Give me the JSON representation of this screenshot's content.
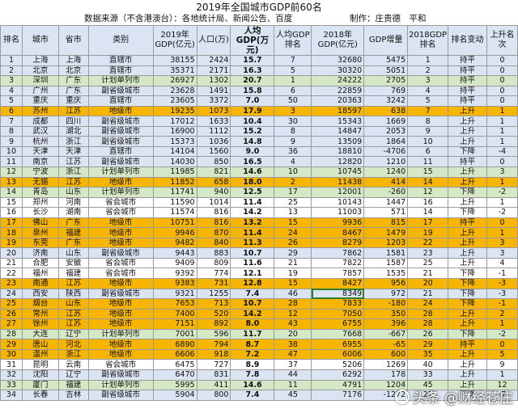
{
  "title": "2019年全国城市GDP前60名",
  "source": "数据来源（不含港澳台）：各地统计局、新闻公告、百度",
  "author": "制作：庄贵德　平和",
  "headers": [
    "排名",
    "城市",
    "省市",
    "类别",
    "2019年GDP(亿元)",
    "人口(万)",
    "人均GDP(万元)",
    "人均GDP排名",
    "2018年GDP(亿元)",
    "GDP增量",
    "2018GDP排名",
    "排名变动",
    "上升名次"
  ],
  "rows": [
    {
      "c": [
        "1",
        "上海",
        "上海",
        "直辖市",
        "38155",
        "2424",
        "15.7",
        "7",
        "32680",
        "5475",
        "1",
        "持平",
        "0"
      ],
      "color": "b"
    },
    {
      "c": [
        "2",
        "北京",
        "北京",
        "直辖市",
        "35371",
        "2171",
        "16.3",
        "5",
        "30320",
        "5051",
        "2",
        "持平",
        "0"
      ],
      "color": "b"
    },
    {
      "c": [
        "3",
        "深圳",
        "广东",
        "计划单列市",
        "26927",
        "1302",
        "20.7",
        "1",
        "24222",
        "2705",
        "3",
        "持平",
        "0"
      ],
      "color": "g"
    },
    {
      "c": [
        "4",
        "广州",
        "广东",
        "副省级城市",
        "23628",
        "1491",
        "15.8",
        "6",
        "22859",
        "769",
        "4",
        "持平",
        "0"
      ],
      "color": "b"
    },
    {
      "c": [
        "5",
        "重庆",
        "重庆",
        "直辖市",
        "23605",
        "3372",
        "7.0",
        "50",
        "20363",
        "3242",
        "5",
        "持平",
        "0"
      ],
      "color": "b"
    },
    {
      "c": [
        "6",
        "苏州",
        "江苏",
        "地级市",
        "19235",
        "1073",
        "17.9",
        "3",
        "18597",
        "638",
        "7",
        "上升",
        "1"
      ],
      "color": "o"
    },
    {
      "c": [
        "7",
        "成都",
        "四川",
        "副省级城市",
        "17012",
        "1633",
        "10.4",
        "30",
        "15343",
        "1669",
        "8",
        "上升",
        "1"
      ],
      "color": "b"
    },
    {
      "c": [
        "8",
        "武汉",
        "湖北",
        "副省级城市",
        "16900",
        "1112",
        "15.2",
        "8",
        "14847",
        "2053",
        "9",
        "上升",
        "1"
      ],
      "color": "b"
    },
    {
      "c": [
        "9",
        "杭州",
        "浙江",
        "副省级城市",
        "15373",
        "1036",
        "14.8",
        "9",
        "13509",
        "1864",
        "10",
        "上升",
        "1"
      ],
      "color": "b"
    },
    {
      "c": [
        "10",
        "天津",
        "天津",
        "直辖市",
        "14104",
        "1560",
        "9.0",
        "36",
        "18810",
        "-4706",
        "6",
        "下降",
        "-4"
      ],
      "color": "b"
    },
    {
      "c": [
        "11",
        "南京",
        "江苏",
        "副省级城市",
        "14030",
        "850",
        "16.5",
        "4",
        "12820",
        "1210",
        "11",
        "持平",
        "0"
      ],
      "color": "b"
    },
    {
      "c": [
        "12",
        "宁波",
        "浙江",
        "计划单列市",
        "11985",
        "821",
        "14.6",
        "10",
        "10745",
        "1240",
        "15",
        "上升",
        "3"
      ],
      "color": "g"
    },
    {
      "c": [
        "13",
        "无锡",
        "江苏",
        "地级市",
        "11852",
        "658",
        "18.0",
        "2",
        "11438",
        "414",
        "14",
        "上升",
        "1"
      ],
      "color": "o"
    },
    {
      "c": [
        "14",
        "青岛",
        "山东",
        "计划单列市",
        "11741",
        "940",
        "12.5",
        "17",
        "12001",
        "-260",
        "12",
        "下降",
        "-2"
      ],
      "color": "g"
    },
    {
      "c": [
        "15",
        "郑州",
        "河南",
        "省会城市",
        "11590",
        "1014",
        "11.4",
        "25",
        "10143",
        "1447",
        "16",
        "上升",
        "1"
      ],
      "color": "w"
    },
    {
      "c": [
        "16",
        "长沙",
        "湖南",
        "省会城市",
        "11574",
        "816",
        "14.2",
        "13",
        "11003",
        "571",
        "14",
        "下降",
        "-2"
      ],
      "color": "w"
    },
    {
      "c": [
        "17",
        "佛山",
        "广东",
        "地级市",
        "10751",
        "816",
        "13.2",
        "15",
        "9936",
        "815",
        "17",
        "持平",
        "0"
      ],
      "color": "o"
    },
    {
      "c": [
        "18",
        "泉州",
        "福建",
        "地级市",
        "9946",
        "870",
        "11.4",
        "24",
        "8467",
        "1479",
        "19",
        "上升",
        "1"
      ],
      "color": "o"
    },
    {
      "c": [
        "19",
        "东莞",
        "广东",
        "地级市",
        "9482",
        "840",
        "11.3",
        "26",
        "8279",
        "1203",
        "22",
        "上升",
        "3"
      ],
      "color": "o"
    },
    {
      "c": [
        "20",
        "济南",
        "山东",
        "副省级城市",
        "9443",
        "883",
        "10.7",
        "29",
        "7862",
        "1581",
        "23",
        "上升",
        "3"
      ],
      "color": "b"
    },
    {
      "c": [
        "21",
        "合肥",
        "安徽",
        "省会城市",
        "9409",
        "809",
        "11.6",
        "21",
        "7822",
        "1587",
        "25",
        "上升",
        "4"
      ],
      "color": "w"
    },
    {
      "c": [
        "22",
        "福州",
        "福建",
        "省会城市",
        "9392",
        "774",
        "12.1",
        "19",
        "7857",
        "1535",
        "21",
        "下降",
        "-1"
      ],
      "color": "w"
    },
    {
      "c": [
        "23",
        "南通",
        "江苏",
        "地级市",
        "9383",
        "731",
        "12.8",
        "15",
        "8427",
        "956",
        "20",
        "下降",
        "-3"
      ],
      "color": "o"
    },
    {
      "c": [
        "24",
        "西安",
        "陕西",
        "副省级城市",
        "9321",
        "1255",
        "7.4",
        "46",
        "8349",
        "972",
        "21",
        "下降",
        "-3"
      ],
      "color": "b"
    },
    {
      "c": [
        "25",
        "烟台",
        "山东",
        "地级市",
        "7653",
        "713",
        "10.7",
        "28",
        "7833",
        "-180",
        "24",
        "下降",
        "-1"
      ],
      "color": "o"
    },
    {
      "c": [
        "26",
        "常州",
        "江苏",
        "地级市",
        "7400",
        "520",
        "14.2",
        "12",
        "7050",
        "350",
        "28",
        "上升",
        "2"
      ],
      "color": "o"
    },
    {
      "c": [
        "27",
        "徐州",
        "江苏",
        "地级市",
        "7151",
        "892",
        "8.0",
        "43",
        "6755",
        "396",
        "28",
        "上升",
        "1"
      ],
      "color": "o"
    },
    {
      "c": [
        "28",
        "大连",
        "辽宁",
        "计划单列市",
        "7001",
        "596",
        "11.7",
        "20",
        "7668",
        "-667",
        "26",
        "下降",
        "-2"
      ],
      "color": "g"
    },
    {
      "c": [
        "29",
        "唐山",
        "河北",
        "地级市",
        "6890",
        "794",
        "8.7",
        "38",
        "6955",
        "-65",
        "29",
        "持平",
        "0"
      ],
      "color": "o"
    },
    {
      "c": [
        "30",
        "温州",
        "浙江",
        "地级市",
        "6606",
        "918",
        "7.2",
        "47",
        "6006",
        "600",
        "35",
        "上升",
        "5"
      ],
      "color": "o"
    },
    {
      "c": [
        "31",
        "昆明",
        "云南",
        "省会城市",
        "6475",
        "727",
        "8.9",
        "37",
        "5206",
        "1269",
        "40",
        "上升",
        "9"
      ],
      "color": "w"
    },
    {
      "c": [
        "32",
        "沈阳",
        "辽宁",
        "副省级城市",
        "6470",
        "831",
        "7.8",
        "44",
        "6292",
        "178",
        "33",
        "上升",
        "1"
      ],
      "color": "b"
    },
    {
      "c": [
        "33",
        "厦门",
        "福建",
        "计划单列市",
        "5995",
        "411",
        "14.6",
        "11",
        "4791",
        "1204",
        "45",
        "上升",
        "12"
      ],
      "color": "g"
    },
    {
      "c": [
        "34",
        "长春",
        "吉林",
        "副省级城市",
        "5904",
        "800",
        "7.4",
        "45",
        "7176",
        "-1272",
        "27",
        "下降",
        "-7"
      ],
      "color": "b"
    }
  ],
  "selected_cell": {
    "row": 24,
    "col": 9
  },
  "watermark": "头条 @财经苍庄",
  "colors": {
    "light_blue": "#dbe4f2",
    "green": "#d5e8c6",
    "orange": "#f7b500",
    "white": "#ffffff",
    "grid": "#9a9a9a"
  }
}
